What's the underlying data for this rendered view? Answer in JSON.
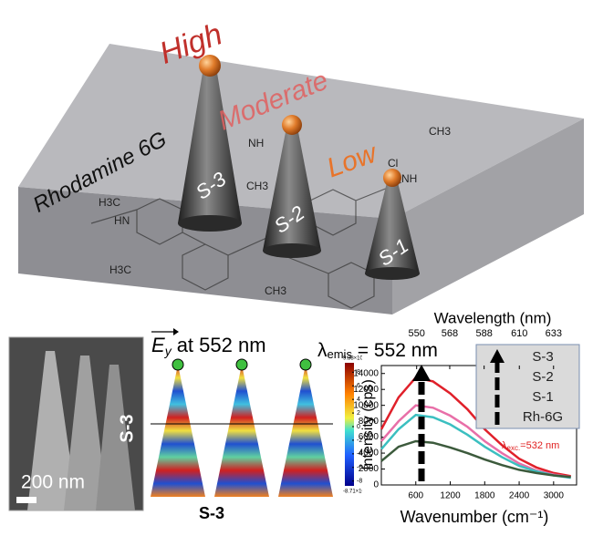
{
  "scene": {
    "levels": [
      "High",
      "Moderate",
      "Low"
    ],
    "slab_label": "Rhodamine 6G",
    "cones": [
      "S-3",
      "S-2",
      "S-1"
    ],
    "molecule": [
      "H3C",
      "HN",
      "H3C",
      "CH3",
      "NH",
      "CH3",
      "Cl",
      "NH",
      "CH3"
    ]
  },
  "sem": {
    "scale_bar": "200 nm",
    "label": "S-3"
  },
  "simulation": {
    "field": "E",
    "subscript": "y",
    "title": "at 552 nm",
    "label": "S-3",
    "colorbar": {
      "max_label": "9.38×10⁻⁷",
      "min_label": "-8.71×10⁻⁷",
      "lim": [
        -8.71,
        9.38
      ],
      "ticks": [
        8,
        6,
        4,
        2,
        0,
        -2,
        -4,
        -6,
        -8
      ]
    }
  },
  "emission_label": {
    "symbol": "λ",
    "sub": "emis",
    "text": " = 552 nm"
  },
  "chart_data": {
    "type": "line",
    "x_label": "Wavenumber (cm⁻¹)",
    "y_label": "Intensity (cps)",
    "x2_label": "Wavelength (nm)",
    "x": [
      0,
      300,
      600,
      900,
      1200,
      1500,
      1800,
      2100,
      2400,
      2700,
      3000,
      3300
    ],
    "series": [
      {
        "name": "S-3",
        "color": "#e0202a",
        "values": [
          7000,
          11000,
          13500,
          13000,
          11500,
          9500,
          7000,
          5000,
          3300,
          2200,
          1500,
          1100
        ]
      },
      {
        "name": "S-2",
        "color": "#e86fa8",
        "values": [
          5500,
          8000,
          10000,
          9700,
          8700,
          7300,
          5500,
          4000,
          2700,
          1800,
          1300,
          1000
        ]
      },
      {
        "name": "S-1",
        "color": "#3bbfc0",
        "values": [
          4500,
          7000,
          8800,
          8500,
          7600,
          6300,
          4800,
          3500,
          2400,
          1700,
          1200,
          900
        ]
      },
      {
        "name": "Rh-6G",
        "color": "#3c5a3c",
        "values": [
          3000,
          4800,
          5500,
          5300,
          4700,
          4000,
          3200,
          2500,
          1900,
          1500,
          1200,
          1000
        ]
      }
    ],
    "xlim": [
      0,
      3400
    ],
    "ylim": [
      0,
      15000
    ],
    "xticks": [
      600,
      1200,
      1800,
      2400,
      3000
    ],
    "yticks": [
      0,
      2000,
      4000,
      6000,
      8000,
      10000,
      12000,
      14000
    ],
    "x2ticks": [
      {
        "value": 615,
        "label": "550"
      },
      {
        "value": 1191,
        "label": "568"
      },
      {
        "value": 1790,
        "label": "588"
      },
      {
        "value": 2403,
        "label": "610"
      },
      {
        "value": 2999,
        "label": "633"
      }
    ],
    "excitation_label": {
      "symbol": "λ",
      "sub": "exc.",
      "text": "=532 nm"
    }
  }
}
